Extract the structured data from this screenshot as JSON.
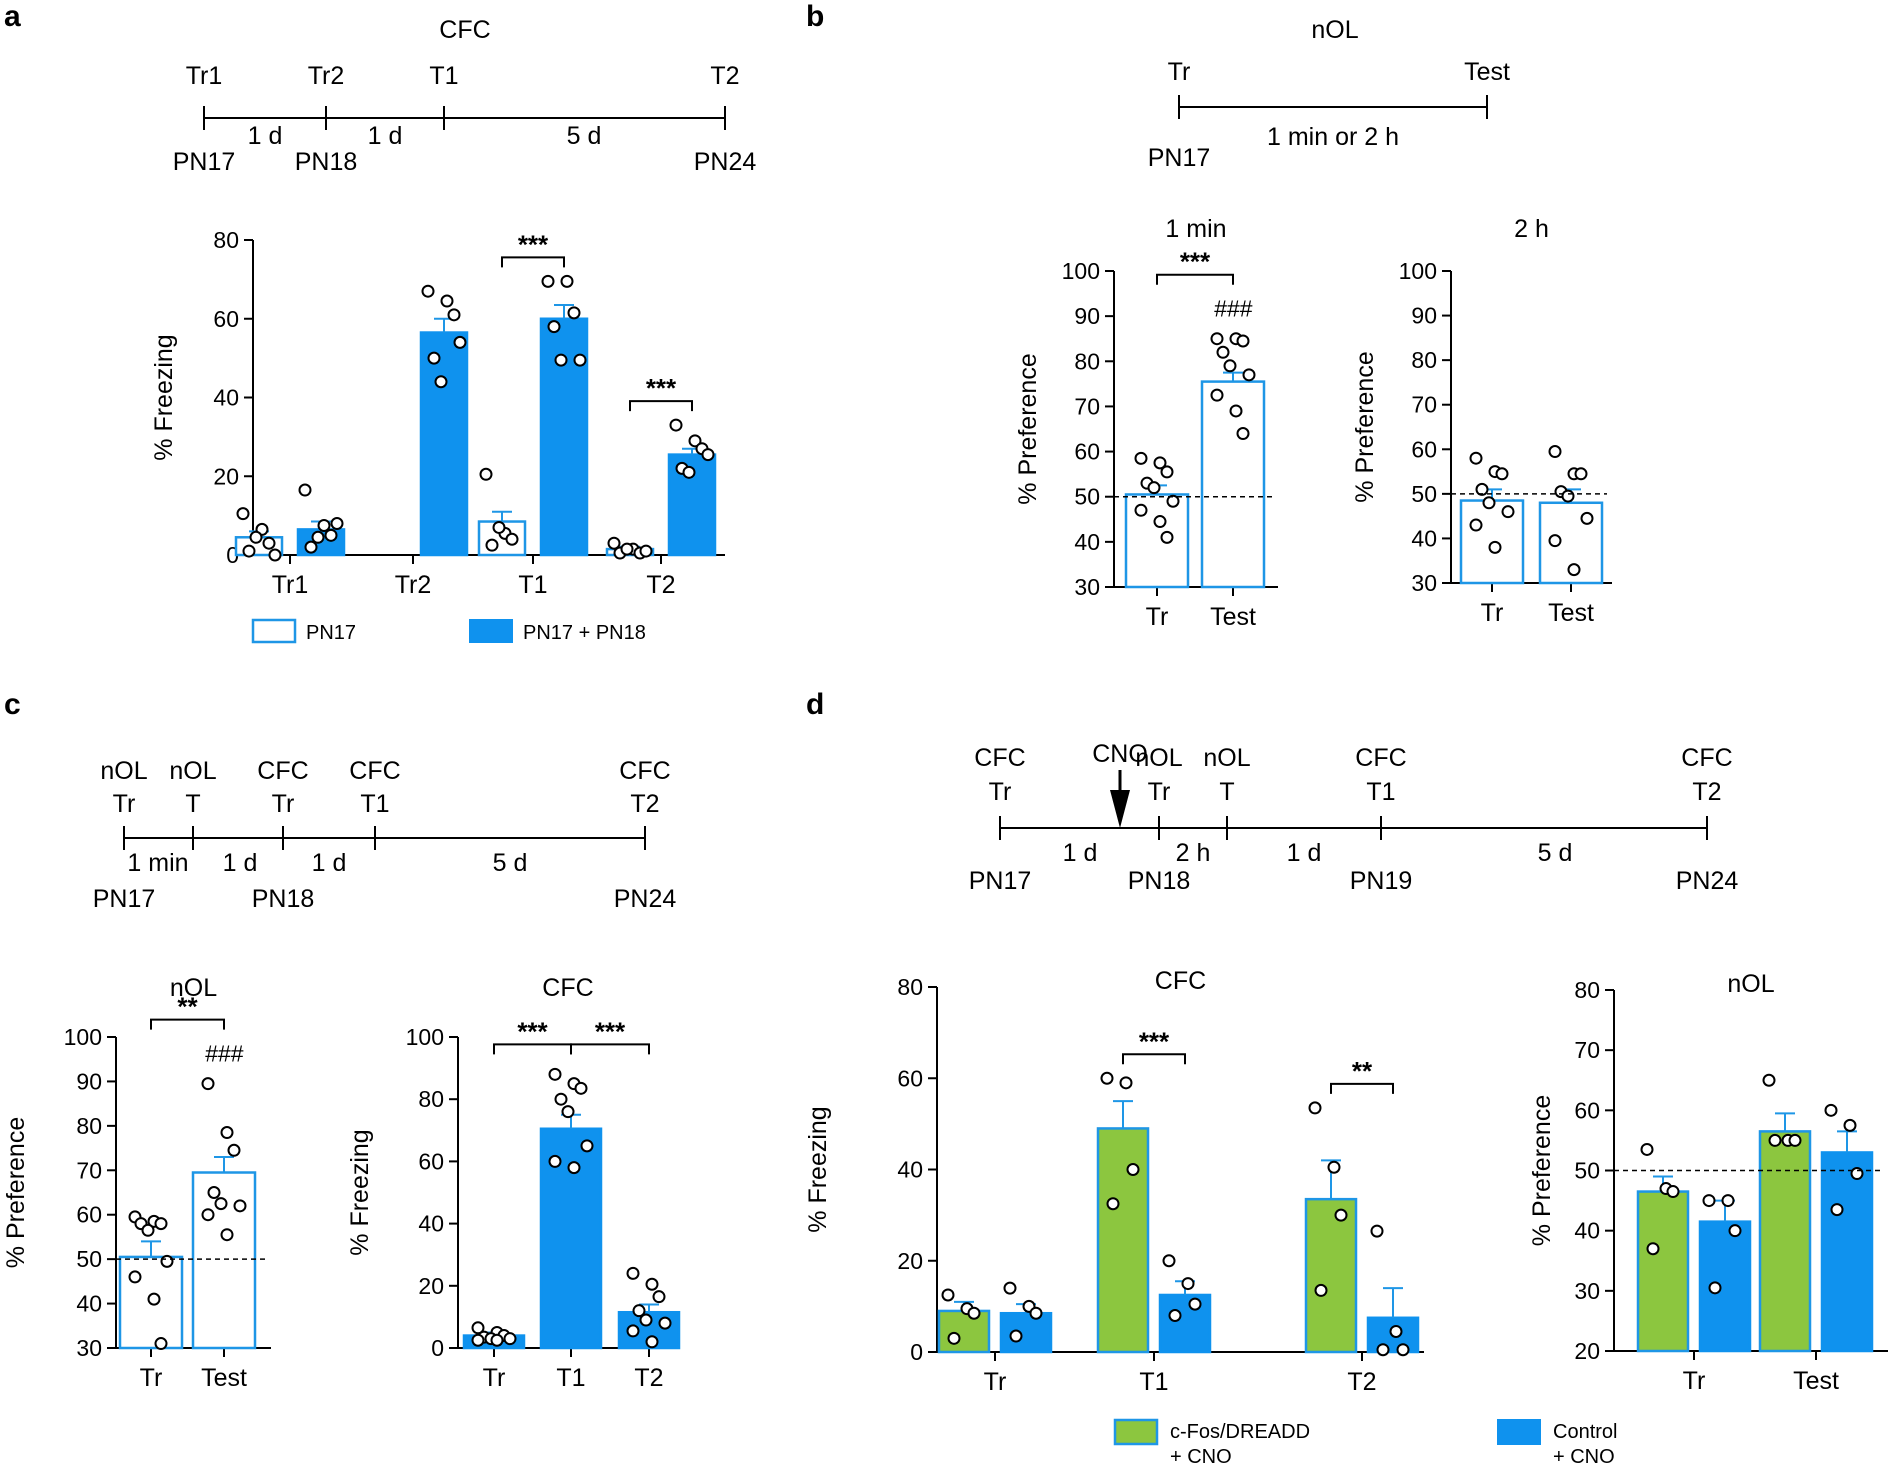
{
  "colors": {
    "blue": "#0f92ee",
    "green": "#8cc63f",
    "edge_blue": "#1e96e6",
    "dot": "#000000"
  },
  "legend_a": {
    "pn17": "PN17",
    "pn17_pn18": "PN17 + PN18"
  },
  "legend_d": {
    "dreadd_1": "c-Fos/DREADD",
    "dreadd_2": "+ CNO",
    "control_1": "Control",
    "control_2": "+ CNO"
  },
  "hash_label": "###",
  "timelines": {
    "a": {
      "title": "CFC",
      "points": [
        {
          "top": [
            "Tr1"
          ],
          "bottom": "PN17"
        },
        {
          "top": [
            "Tr2"
          ],
          "bottom": "PN18"
        },
        {
          "top": [
            "T1"
          ],
          "bottom": ""
        },
        {
          "top": [
            "T2"
          ],
          "bottom": "PN24"
        }
      ],
      "intervals": [
        "1 d",
        "1 d",
        "5 d"
      ]
    },
    "b": {
      "title": "nOL",
      "points": [
        {
          "top": [
            "Tr"
          ],
          "bottom": "PN17"
        },
        {
          "top": [
            "Test"
          ],
          "bottom": ""
        }
      ],
      "intervals": [
        "1 min or 2 h"
      ]
    },
    "c": {
      "title": "",
      "points": [
        {
          "top": [
            "nOL",
            "Tr"
          ],
          "bottom": "PN17"
        },
        {
          "top": [
            "nOL",
            "T"
          ],
          "bottom": ""
        },
        {
          "top": [
            "CFC",
            "Tr"
          ],
          "bottom": "PN18"
        },
        {
          "top": [
            "CFC",
            "T1"
          ],
          "bottom": ""
        },
        {
          "top": [
            "CFC",
            "T2"
          ],
          "bottom": "PN24"
        }
      ],
      "intervals": [
        "1 min",
        "1 d",
        "1 d",
        "5 d"
      ]
    },
    "d": {
      "title": "",
      "cno": "CNO",
      "points": [
        {
          "top": [
            "CFC",
            "Tr"
          ],
          "bottom": "PN17"
        },
        {
          "top": [
            "nOL",
            "Tr"
          ],
          "bottom": "PN18"
        },
        {
          "top": [
            "nOL",
            "T"
          ],
          "bottom": ""
        },
        {
          "top": [
            "CFC",
            "T1"
          ],
          "bottom": "PN19"
        },
        {
          "top": [
            "CFC",
            "T2"
          ],
          "bottom": "PN24"
        }
      ],
      "intervals": [
        "1 d",
        "2 h",
        "1 d",
        "5 d"
      ]
    }
  },
  "chart_data": [
    {
      "id": "a",
      "type": "bar",
      "title": "",
      "xlabel": "",
      "ylabel": "% Freezing",
      "ylim": [
        0,
        80
      ],
      "yticks": [
        0,
        20,
        40,
        60,
        80
      ],
      "categories": [
        "Tr1",
        "Tr2",
        "T1",
        "T2"
      ],
      "series": [
        {
          "name": "PN17",
          "values": [
            4.5,
            null,
            8.5,
            1.5
          ],
          "errors": [
            1.5,
            null,
            2.5,
            0.6
          ],
          "points": [
            [
              10.5,
              6.5,
              3,
              1,
              4.5,
              0
            ],
            [],
            [
              20.5,
              5.5,
              4,
              2.5,
              7
            ],
            [
              3,
              1.5,
              0.5,
              0.5,
              1.5,
              1
            ]
          ]
        },
        {
          "name": "PN17 + PN18",
          "values": [
            6.5,
            56.5,
            60,
            25.5
          ],
          "errors": [
            2,
            3.5,
            3.5,
            1.5
          ],
          "points": [
            [
              16.5,
              7.5,
              5,
              2,
              4.5,
              8
            ],
            [
              67,
              64.5,
              61,
              50,
              44,
              54
            ],
            [
              69.5,
              69.5,
              61.5,
              58,
              49.5,
              49.5
            ],
            [
              33,
              29,
              27,
              22,
              21,
              25.5
            ]
          ]
        }
      ],
      "significance": [
        {
          "category": "T1",
          "label": "***"
        },
        {
          "category": "T2",
          "label": "***"
        }
      ]
    },
    {
      "id": "b1",
      "type": "bar",
      "title": "1 min",
      "xlabel": "",
      "ylabel": "% Preference",
      "ylim": [
        30,
        100
      ],
      "yticks": [
        30,
        40,
        50,
        60,
        70,
        80,
        90,
        100
      ],
      "reference_line": 50,
      "categories": [
        "Tr",
        "Test"
      ],
      "series": [
        {
          "name": "",
          "values": [
            50.5,
            75.5
          ],
          "errors": [
            2,
            2
          ],
          "points": [
            [
              58.5,
              57.5,
              55.5,
              53,
              52,
              49,
              47,
              44.5,
              41
            ],
            [
              85,
              85,
              84.5,
              82,
              79,
              77,
              72.5,
              69,
              64
            ]
          ]
        }
      ],
      "significance": [
        {
          "between": [
            "Tr",
            "Test"
          ],
          "label": "***"
        },
        {
          "category": "Test",
          "label": "###"
        }
      ]
    },
    {
      "id": "b2",
      "type": "bar",
      "title": "2 h",
      "xlabel": "",
      "ylabel": "% Preference",
      "ylim": [
        30,
        100
      ],
      "yticks": [
        30,
        40,
        50,
        60,
        70,
        80,
        90,
        100
      ],
      "reference_line": 50,
      "categories": [
        "Tr",
        "Test"
      ],
      "series": [
        {
          "name": "",
          "values": [
            48.5,
            48
          ],
          "errors": [
            2.5,
            3
          ],
          "points": [
            [
              58,
              55,
              54.5,
              51,
              48,
              46,
              43,
              38
            ],
            [
              59.5,
              54.5,
              54.5,
              50.5,
              49.5,
              44.5,
              39.5,
              33
            ]
          ]
        }
      ]
    },
    {
      "id": "c1",
      "type": "bar",
      "title": "nOL",
      "xlabel": "",
      "ylabel": "% Preference",
      "ylim": [
        30,
        100
      ],
      "yticks": [
        30,
        40,
        50,
        60,
        70,
        80,
        90,
        100
      ],
      "reference_line": 50,
      "categories": [
        "Tr",
        "Test"
      ],
      "series": [
        {
          "name": "",
          "values": [
            50.5,
            69.5
          ],
          "errors": [
            3.5,
            3.5
          ],
          "points": [
            [
              59.5,
              58.5,
              58,
              58,
              56.5,
              49.5,
              46,
              41,
              31
            ],
            [
              89.5,
              78.5,
              74.5,
              65,
              62.5,
              62,
              60,
              55.5
            ]
          ]
        }
      ],
      "significance": [
        {
          "between": [
            "Tr",
            "Test"
          ],
          "label": "**"
        },
        {
          "category": "Test",
          "label": "###"
        }
      ]
    },
    {
      "id": "c2",
      "type": "bar",
      "title": "CFC",
      "xlabel": "",
      "ylabel": "% Freezing",
      "ylim": [
        0,
        100
      ],
      "yticks": [
        0,
        20,
        40,
        60,
        80,
        100
      ],
      "categories": [
        "Tr",
        "T1",
        "T2"
      ],
      "series": [
        {
          "name": "",
          "values": [
            4,
            70.5,
            11.5
          ],
          "errors": [
            1,
            4.5,
            2.5
          ],
          "points": [
            [
              6.5,
              5,
              4,
              3.5,
              3,
              3,
              2.5,
              2.5
            ],
            [
              88,
              85,
              83.5,
              80,
              76,
              65,
              60,
              58
            ],
            [
              24,
              20.5,
              16.5,
              12,
              9,
              8,
              5.5,
              2
            ]
          ]
        }
      ],
      "significance": [
        {
          "between": [
            "Tr",
            "T1"
          ],
          "label": "***"
        },
        {
          "between": [
            "T1",
            "T2"
          ],
          "label": "***"
        }
      ]
    },
    {
      "id": "d1",
      "type": "bar",
      "title": "CFC",
      "xlabel": "",
      "ylabel": "% Freezing",
      "ylim": [
        0,
        80
      ],
      "yticks": [
        0,
        20,
        40,
        60,
        80
      ],
      "categories": [
        "Tr",
        "T1",
        "T2"
      ],
      "series": [
        {
          "name": "c-Fos/DREADD + CNO",
          "values": [
            9,
            49,
            33.5
          ],
          "errors": [
            2,
            6,
            8.5
          ],
          "points": [
            [
              12.5,
              9.5,
              8.5,
              3
            ],
            [
              60,
              59,
              40,
              32.5
            ],
            [
              53.5,
              40.5,
              30,
              13.5
            ]
          ]
        },
        {
          "name": "Control + CNO",
          "values": [
            8.5,
            12.5,
            7.5
          ],
          "errors": [
            2,
            3,
            6.5
          ],
          "points": [
            [
              14,
              10,
              8.5,
              3.5
            ],
            [
              20,
              15,
              10.5,
              8
            ],
            [
              26.5,
              4.5,
              0.5,
              0.5
            ]
          ]
        }
      ],
      "significance": [
        {
          "category": "T1",
          "label": "***"
        },
        {
          "category": "T2",
          "label": "**"
        }
      ]
    },
    {
      "id": "d2",
      "type": "bar",
      "title": "nOL",
      "xlabel": "",
      "ylabel": "% Preference",
      "ylim": [
        20,
        80
      ],
      "yticks": [
        20,
        30,
        40,
        50,
        60,
        70,
        80
      ],
      "reference_line": 50,
      "categories": [
        "Tr",
        "Test"
      ],
      "series": [
        {
          "name": "c-Fos/DREADD + CNO",
          "values": [
            46.5,
            56.5
          ],
          "errors": [
            2.5,
            3
          ],
          "points": [
            [
              53.5,
              47,
              46.5,
              37
            ],
            [
              65,
              55,
              55,
              55
            ]
          ]
        },
        {
          "name": "Control + CNO",
          "values": [
            41.5,
            53
          ],
          "errors": [
            3.5,
            3.5
          ],
          "points": [
            [
              45,
              45,
              40,
              30.5
            ],
            [
              60,
              57.5,
              49.5,
              43.5
            ]
          ]
        }
      ]
    }
  ]
}
